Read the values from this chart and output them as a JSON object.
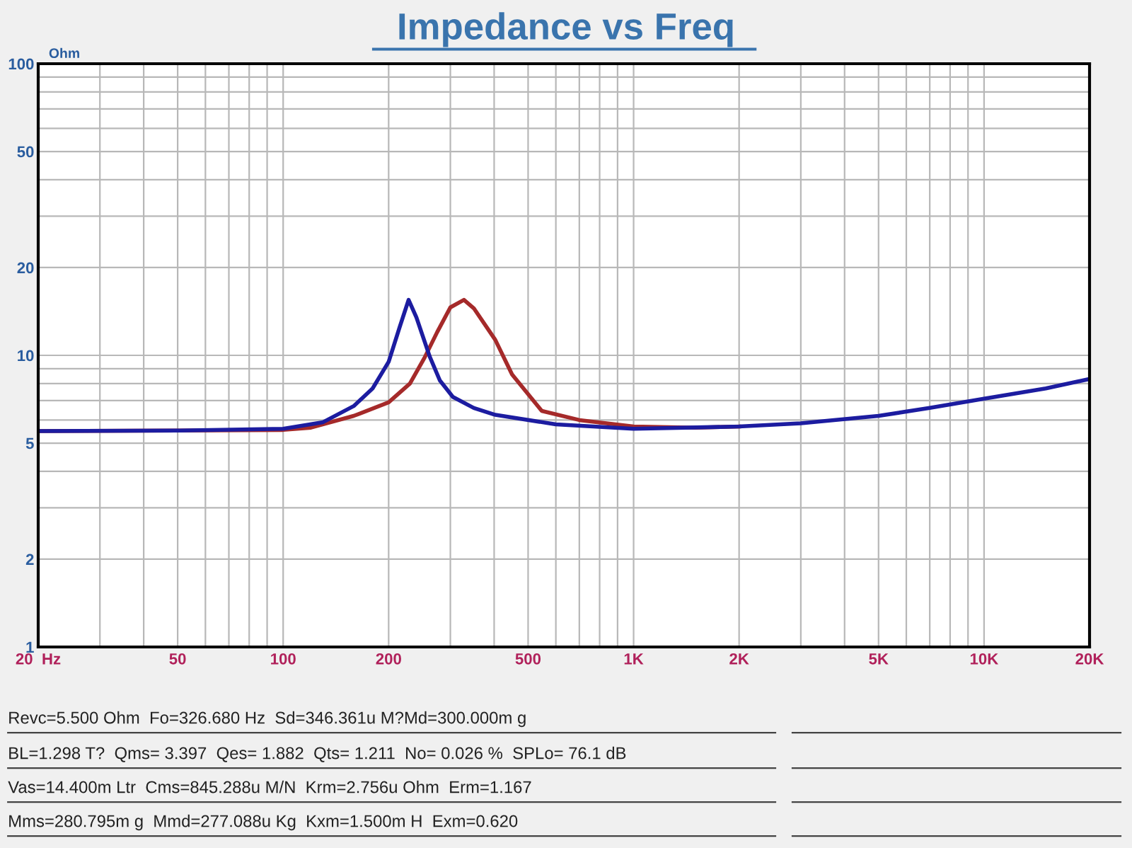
{
  "chart_data": {
    "type": "line",
    "title": "Impedance vs Freq",
    "ylabel": "Ohm",
    "log": "xy",
    "grid": true,
    "marker": "none",
    "line_style": "solid",
    "xlim": [
      20,
      20000
    ],
    "ylim": [
      1,
      100
    ],
    "xticks": [
      {
        "value": 20,
        "label": "20  Hz"
      },
      50,
      100,
      200,
      500,
      {
        "value": 1000,
        "label": "1K"
      },
      {
        "value": 2000,
        "label": "2K"
      },
      {
        "value": 5000,
        "label": "5K"
      },
      {
        "value": 10000,
        "label": "10K"
      },
      {
        "value": 20000,
        "label": "20K"
      }
    ],
    "yticks": [
      1,
      2,
      5,
      10,
      20,
      50,
      100
    ],
    "series": [
      {
        "color": "#a52a2a",
        "x": [
          20,
          50,
          100,
          120,
          159,
          200,
          230,
          253,
          275,
          300,
          328,
          350,
          403,
          450,
          547,
          700,
          1000,
          1500,
          2000
        ],
        "values": [
          5.5,
          5.52,
          5.55,
          5.65,
          6.2,
          6.9,
          8.0,
          9.8,
          12.0,
          14.6,
          15.5,
          14.5,
          11.3,
          8.6,
          6.45,
          6.0,
          5.7,
          5.65,
          5.7
        ]
      },
      {
        "color": "#1c1ca0",
        "x": [
          20,
          50,
          100,
          130,
          159,
          180,
          200,
          215,
          228,
          240,
          262,
          280,
          305,
          350,
          403,
          600,
          1000,
          2000,
          3000,
          5000,
          7000,
          10000,
          15000,
          20000
        ],
        "values": [
          5.5,
          5.52,
          5.6,
          5.9,
          6.7,
          7.7,
          9.5,
          12.5,
          15.5,
          13.5,
          9.9,
          8.2,
          7.2,
          6.6,
          6.25,
          5.8,
          5.6,
          5.7,
          5.85,
          6.2,
          6.6,
          7.1,
          7.7,
          8.3
        ]
      }
    ],
    "annotations": [
      "Revc=5.500 Ohm  Fo=326.680 Hz  Sd=346.361u M?Md=300.000m g",
      "BL=1.298 T?  Qms= 3.397  Qes= 1.882  Qts= 1.211  No= 0.026 %  SPLo= 76.1 dB",
      "Vas=14.400m Ltr  Cms=845.288u M/N  Krm=2.756u Ohm  Erm=1.167",
      "Mms=280.795m g  Mmd=277.088u Kg  Kxm=1.500m H  Exm=0.620"
    ]
  }
}
